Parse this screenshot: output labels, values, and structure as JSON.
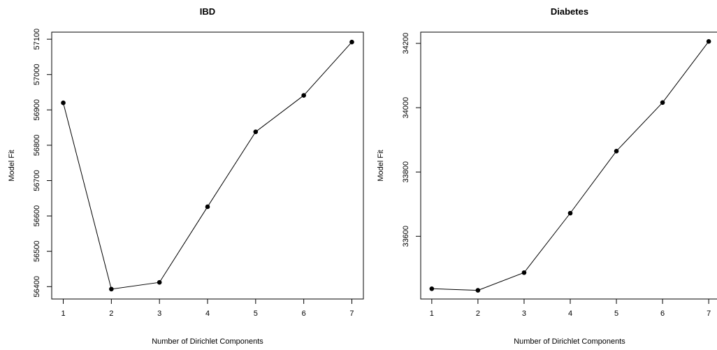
{
  "chart_data": [
    {
      "type": "line",
      "title": "IBD",
      "xlabel": "Number of Dirichlet Components",
      "ylabel": "Model Fit",
      "x": [
        1,
        2,
        3,
        4,
        5,
        6,
        7
      ],
      "series": [
        {
          "values": [
            56920,
            56393,
            56412,
            56626,
            56838,
            56941,
            57092
          ]
        }
      ],
      "xticks": [
        "1",
        "2",
        "3",
        "4",
        "5",
        "6",
        "7"
      ],
      "yticks": [
        "56400",
        "56500",
        "56600",
        "56700",
        "56800",
        "56900",
        "57000",
        "57100"
      ],
      "xlim": [
        0.76,
        7.24
      ],
      "ylim": [
        56365,
        57120
      ],
      "grid": false,
      "marker": "filled-circle",
      "line_color": "#000000"
    },
    {
      "type": "line",
      "title": "Diabetes",
      "xlabel": "Number of Dirichlet Components",
      "ylabel": "Model Fit",
      "x": [
        1,
        2,
        3,
        4,
        5,
        6,
        7
      ],
      "series": [
        {
          "values": [
            33437,
            33432,
            33487,
            33672,
            33865,
            34016,
            34206
          ]
        }
      ],
      "xticks": [
        "1",
        "2",
        "3",
        "4",
        "5",
        "6",
        "7"
      ],
      "yticks": [
        "33600",
        "33800",
        "34000",
        "34200"
      ],
      "xlim": [
        0.76,
        7.24
      ],
      "ylim": [
        33405,
        34235
      ],
      "grid": false,
      "marker": "filled-circle",
      "line_color": "#000000"
    }
  ]
}
